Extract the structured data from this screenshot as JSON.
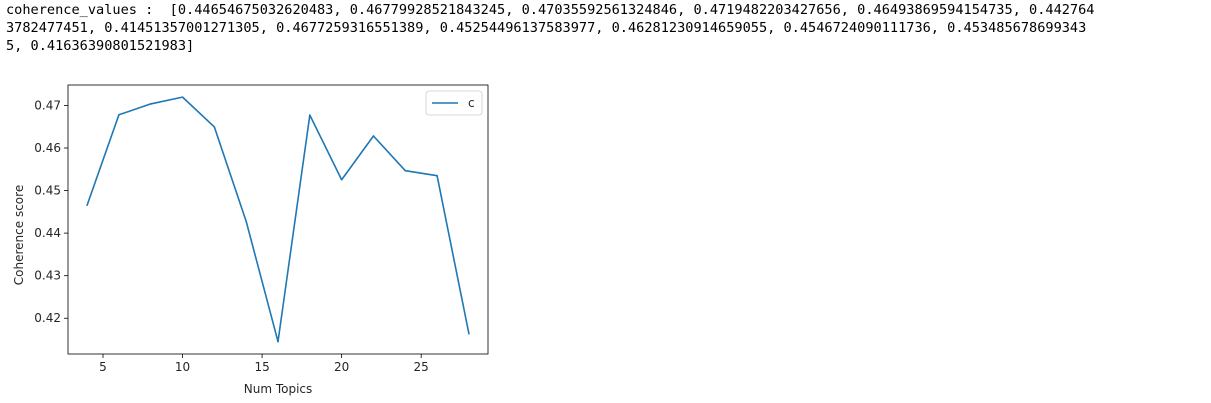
{
  "output": {
    "lines": [
      "coherence_values :  [0.44654675032620483, 0.46779928521843245, 0.47035592561324846, 0.4719482203427656, 0.46493869594154735, 0.442764",
      "3782477451, 0.41451357001271305, 0.4677259316551389, 0.45254496137583977, 0.46281230914659055, 0.4546724090111736, 0.453485678699343",
      "5, 0.41636390801521983]"
    ]
  },
  "chart_data": {
    "type": "line",
    "x": [
      4,
      6,
      8,
      10,
      12,
      14,
      16,
      18,
      20,
      22,
      24,
      26,
      28
    ],
    "series": [
      {
        "name": "c",
        "values": [
          0.44654675032620483,
          0.46779928521843245,
          0.47035592561324846,
          0.4719482203427656,
          0.46493869594154735,
          0.4427643782477451,
          0.41451357001271305,
          0.4677259316551389,
          0.45254496137583977,
          0.46281230914659055,
          0.4546724090111736,
          0.4534856786993435,
          0.41636390801521983
        ],
        "color": "#1f77b4"
      }
    ],
    "xlabel": "Num Topics",
    "ylabel": "Coherence score",
    "xlim": [
      2.8,
      29.2
    ],
    "ylim": [
      0.4116,
      0.4748
    ],
    "xticks": [
      5,
      10,
      15,
      20,
      25
    ],
    "xtick_labels": [
      "5",
      "10",
      "15",
      "20",
      "25"
    ],
    "yticks": [
      0.42,
      0.43,
      0.44,
      0.45,
      0.46,
      0.47
    ],
    "ytick_labels": [
      "0.42",
      "0.43",
      "0.44",
      "0.45",
      "0.46",
      "0.47"
    ],
    "grid": false,
    "legend_position": "top-right"
  }
}
